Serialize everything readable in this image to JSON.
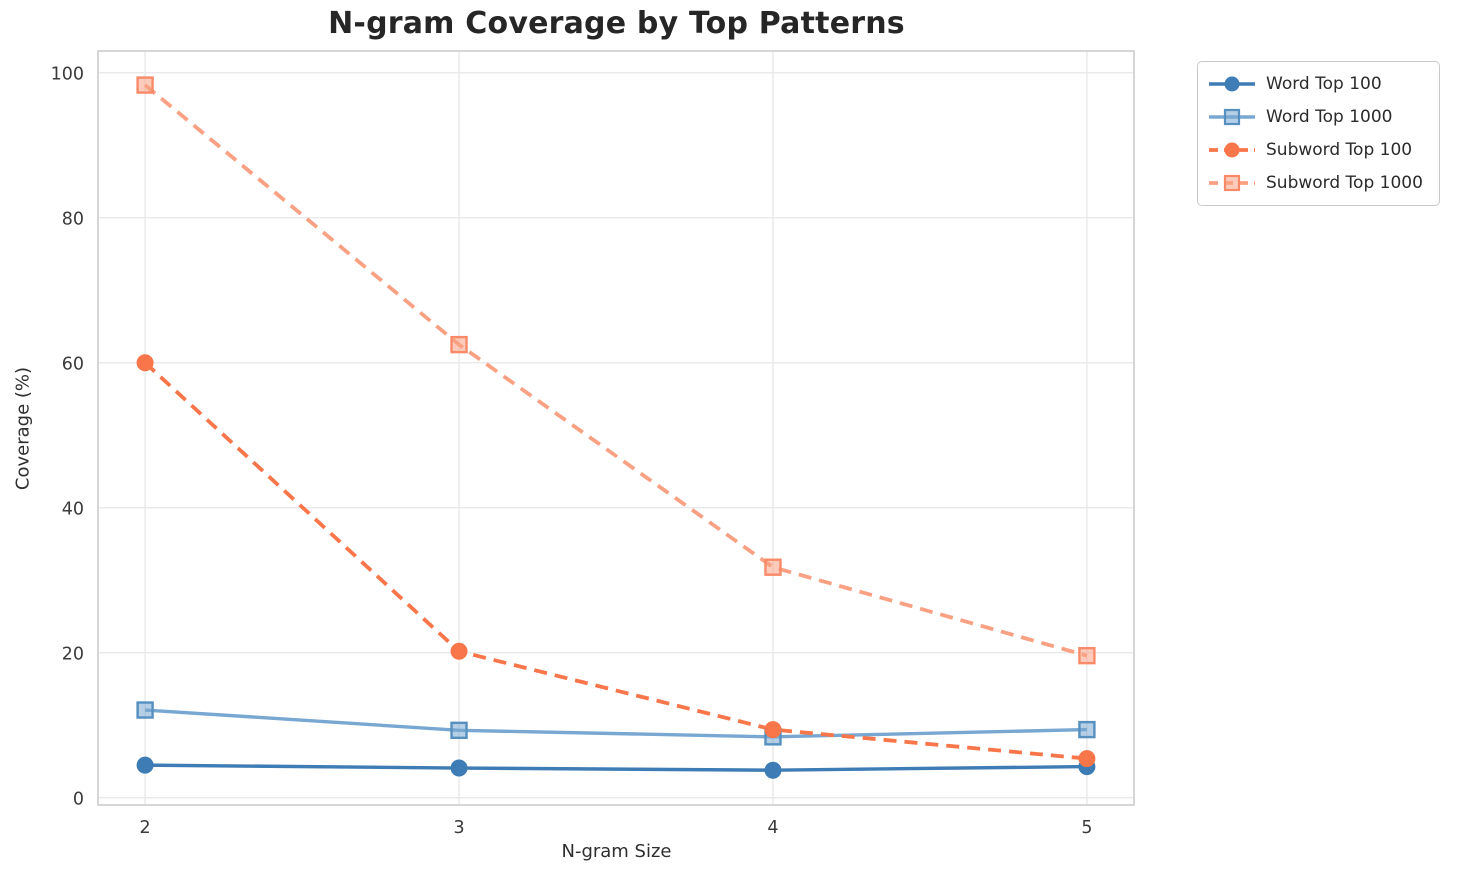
{
  "title": "N-gram Coverage by Top Patterns",
  "chart_data": {
    "type": "line",
    "title": "N-gram Coverage by Top Patterns",
    "xlabel": "N-gram Size",
    "ylabel": "Coverage (%)",
    "x": [
      2,
      3,
      4,
      5
    ],
    "xticks": [
      "2",
      "3",
      "4",
      "5"
    ],
    "yticks": [
      "0",
      "20",
      "40",
      "60",
      "80",
      "100"
    ],
    "ytick_values": [
      0,
      20,
      40,
      60,
      80,
      100
    ],
    "xlim": [
      1.85,
      5.15
    ],
    "ylim": [
      -1,
      103
    ],
    "grid": true,
    "legend_position": "upper-right-outside",
    "series": [
      {
        "name": "Word Top 100",
        "values": [
          4.5,
          4.1,
          3.8,
          4.3
        ],
        "color": "#3d7cb5",
        "edge_color": "#3d7cb5",
        "marker": "circle",
        "line_style": "solid"
      },
      {
        "name": "Word Top 1000",
        "values": [
          12.1,
          9.3,
          8.4,
          9.4
        ],
        "color": "#78a8d1",
        "edge_color": "#5590c0",
        "marker": "square",
        "line_style": "solid"
      },
      {
        "name": "Subword Top 100",
        "values": [
          60.0,
          20.2,
          9.4,
          5.4
        ],
        "color": "#f8764a",
        "edge_color": "#f8764a",
        "marker": "circle",
        "line_style": "dashed"
      },
      {
        "name": "Subword Top 1000",
        "values": [
          98.3,
          62.5,
          31.8,
          19.6
        ],
        "color": "#faa183",
        "edge_color": "#f98a68",
        "marker": "square",
        "line_style": "dashed"
      }
    ]
  },
  "style": {
    "grid_color": "#e7e7e7",
    "spine_color": "#cccccc",
    "tick_text_color": "#3a3a3a",
    "text_color": "#2e2e2e",
    "background": "#ffffff"
  }
}
